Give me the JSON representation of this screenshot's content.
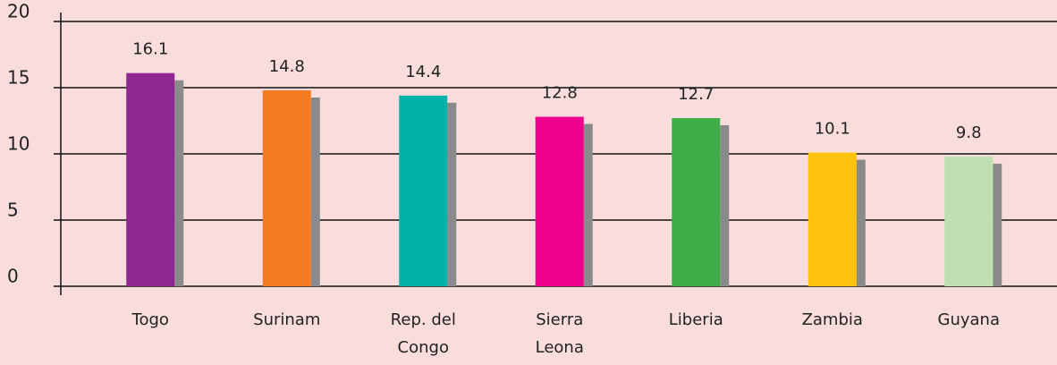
{
  "chart_data": {
    "type": "bar",
    "categories": [
      [
        "Togo"
      ],
      [
        "Surinam"
      ],
      [
        "Rep. del",
        "Congo"
      ],
      [
        "Sierra",
        "Leona"
      ],
      [
        "Liberia"
      ],
      [
        "Zambia"
      ],
      [
        "Guyana"
      ]
    ],
    "values": [
      16.1,
      14.8,
      14.4,
      12.8,
      12.7,
      10.1,
      9.8
    ],
    "colors": [
      "#8e278f",
      "#f47b20",
      "#00b2a9",
      "#ec008c",
      "#3fae49",
      "#ffc20e",
      "#bfe0b0"
    ],
    "shadow_color": "#8a8a8a",
    "ylim": [
      0,
      20
    ],
    "yticks": [
      0,
      5,
      10,
      15,
      20
    ],
    "grid": true
  }
}
